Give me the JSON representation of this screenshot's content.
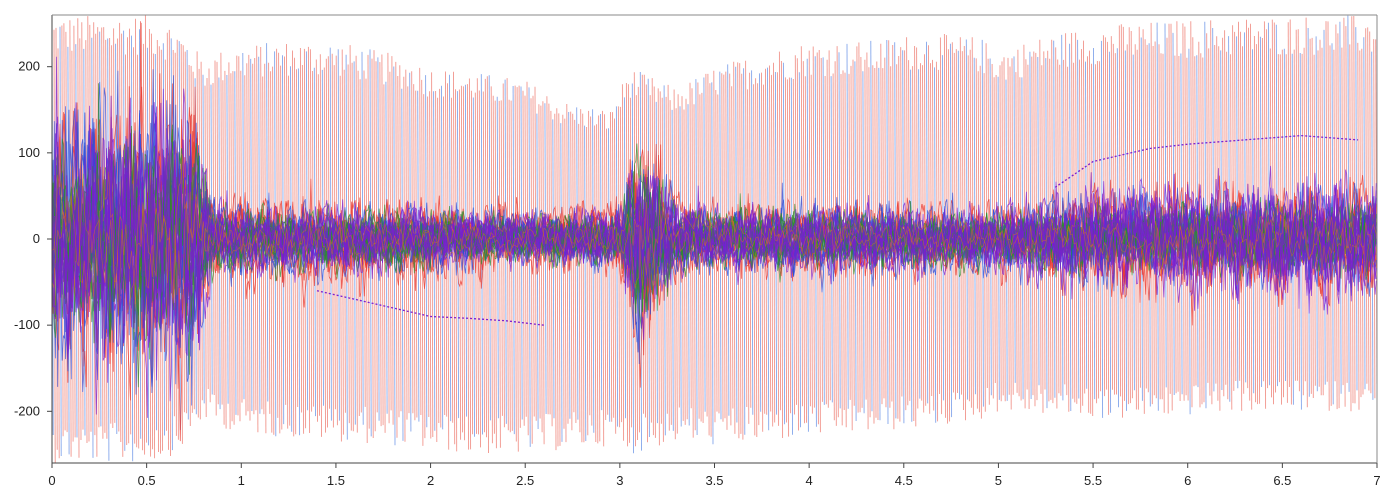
{
  "chart_data": {
    "type": "line",
    "title": "",
    "xlabel": "",
    "ylabel": "",
    "xlim": [
      0,
      7
    ],
    "ylim": [
      -260,
      260
    ],
    "x_ticks": [
      0,
      0.5,
      1,
      1.5,
      2,
      2.5,
      3,
      3.5,
      4,
      4.5,
      5,
      5.5,
      6,
      6.5,
      7
    ],
    "x_tick_labels": [
      "0",
      "0.5",
      "1",
      "1.5",
      "2",
      "2.5",
      "3",
      "3.5",
      "4",
      "4.5",
      "5",
      "5.5",
      "6",
      "6.5",
      "7"
    ],
    "y_ticks": [
      -200,
      -100,
      0,
      100,
      200
    ],
    "y_tick_labels": [
      "-200",
      "-100",
      "0",
      "100",
      "200"
    ],
    "grid": false,
    "legend": "none",
    "colors": {
      "red": "#e8332a",
      "salmon": "#f08a80",
      "blue": "#2b4bd8",
      "lightblue": "#6f97e8",
      "green": "#2e8b2e",
      "purple": "#7a1fd0",
      "orange": "#e07a10"
    },
    "envelope": {
      "x": [
        0,
        0.25,
        0.5,
        0.65,
        0.8,
        0.9,
        1.0,
        1.2,
        1.5,
        1.8,
        2.0,
        2.2,
        2.5,
        2.7,
        2.95,
        3.05,
        3.15,
        3.3,
        3.5,
        3.8,
        4.0,
        4.3,
        4.6,
        4.9,
        5.0,
        5.3,
        5.6,
        6.0,
        6.3,
        6.6,
        7.0
      ],
      "upper": [
        260,
        260,
        260,
        250,
        210,
        220,
        225,
        230,
        230,
        215,
        200,
        195,
        185,
        160,
        150,
        200,
        190,
        175,
        200,
        220,
        230,
        230,
        240,
        235,
        220,
        240,
        250,
        255,
        258,
        260,
        260
      ],
      "lower": [
        -260,
        -260,
        -260,
        -250,
        -210,
        -220,
        -225,
        -230,
        -235,
        -240,
        -245,
        -250,
        -250,
        -245,
        -240,
        -250,
        -245,
        -235,
        -240,
        -235,
        -230,
        -225,
        -220,
        -210,
        -200,
        -205,
        -210,
        -205,
        -200,
        -200,
        -200
      ]
    },
    "core_band": {
      "x": [
        0,
        0.3,
        0.6,
        0.75,
        0.85,
        1.0,
        1.5,
        2.0,
        2.5,
        3.0,
        3.1,
        3.3,
        3.5,
        4.0,
        4.5,
        5.0,
        5.5,
        6.0,
        6.5,
        7.0
      ],
      "upper": [
        150,
        190,
        200,
        150,
        80,
        70,
        65,
        60,
        55,
        50,
        230,
        70,
        60,
        55,
        55,
        55,
        80,
        90,
        100,
        95
      ],
      "lower": [
        -150,
        -190,
        -220,
        -200,
        -80,
        -70,
        -75,
        -80,
        -75,
        -70,
        -90,
        -75,
        -70,
        -70,
        -65,
        -65,
        -85,
        -100,
        -120,
        -130
      ]
    },
    "series": [
      {
        "color": "red",
        "dispersion": [
          200,
          210,
          230,
          220,
          80,
          75,
          70,
          65,
          55,
          65,
          220,
          70,
          60,
          60,
          55,
          55,
          80,
          90,
          95,
          95
        ]
      },
      {
        "color": "blue",
        "dispersion": [
          220,
          230,
          240,
          230,
          60,
          55,
          55,
          50,
          45,
          50,
          200,
          60,
          50,
          60,
          55,
          55,
          70,
          75,
          80,
          80
        ]
      },
      {
        "color": "green",
        "dispersion": [
          150,
          160,
          170,
          160,
          55,
          50,
          50,
          45,
          40,
          45,
          160,
          55,
          45,
          50,
          45,
          45,
          55,
          60,
          60,
          60
        ]
      },
      {
        "color": "purple",
        "dispersion": [
          180,
          200,
          220,
          210,
          60,
          55,
          55,
          50,
          45,
          50,
          150,
          60,
          50,
          55,
          50,
          55,
          90,
          100,
          105,
          105
        ]
      }
    ],
    "purple_dotted_trace": {
      "x": [
        1.4,
        1.6,
        1.8,
        2.0,
        2.2,
        2.4,
        2.6
      ],
      "y": [
        -60,
        -70,
        -80,
        -90,
        -92,
        -95,
        -100
      ],
      "x2": [
        5.3,
        5.5,
        5.8,
        6.0,
        6.3,
        6.6,
        6.9
      ],
      "y2": [
        60,
        90,
        105,
        110,
        115,
        120,
        115
      ]
    }
  }
}
